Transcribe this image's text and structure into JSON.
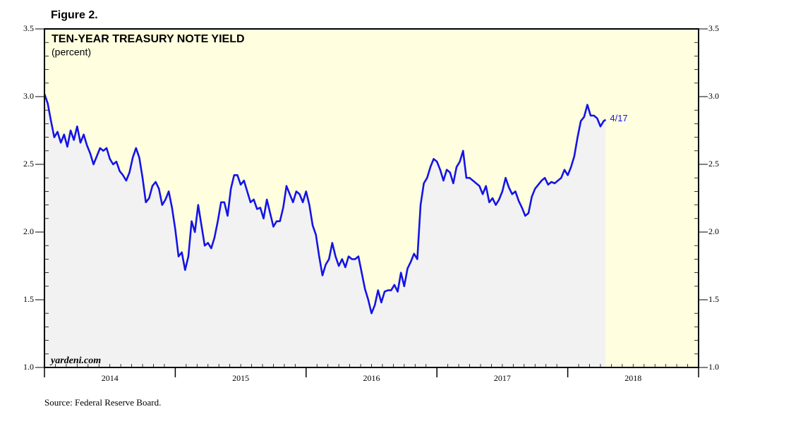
{
  "chart_data": {
    "type": "line",
    "figure_label": "Figure 2.",
    "title": "TEN-YEAR TREASURY NOTE YIELD",
    "subtitle": "(percent)",
    "watermark": "yardeni.com",
    "source": "Source: Federal Reserve Board.",
    "end_annotation": "4/17",
    "color": "#1414e6",
    "area_color": "#f2f2f2",
    "background_color": "#ffffe0",
    "xlim": [
      2014,
      2019
    ],
    "xticks": [
      {
        "value": 2014.5,
        "label": "2014"
      },
      {
        "value": 2015.5,
        "label": "2015"
      },
      {
        "value": 2016.5,
        "label": "2016"
      },
      {
        "value": 2017.5,
        "label": "2017"
      },
      {
        "value": 2018.5,
        "label": "2018"
      }
    ],
    "year_boundaries": [
      2015,
      2016,
      2017,
      2018
    ],
    "ylim": [
      1.0,
      3.5
    ],
    "yticks": [
      {
        "value": 1.0,
        "label": "1.0"
      },
      {
        "value": 1.5,
        "label": "1.5"
      },
      {
        "value": 2.0,
        "label": "2.0"
      },
      {
        "value": 2.5,
        "label": "2.5"
      },
      {
        "value": 3.0,
        "label": "3.0"
      },
      {
        "value": 3.5,
        "label": "3.5"
      }
    ],
    "x": [
      2014,
      2014.025,
      2014.05,
      2014.075,
      2014.1,
      2014.125,
      2014.15,
      2014.175,
      2014.2,
      2014.225,
      2014.25,
      2014.275,
      2014.3,
      2014.325,
      2014.35,
      2014.375,
      2014.4,
      2014.425,
      2014.45,
      2014.475,
      2014.5,
      2014.525,
      2014.55,
      2014.575,
      2014.6,
      2014.625,
      2014.65,
      2014.675,
      2014.7,
      2014.725,
      2014.75,
      2014.775,
      2014.8,
      2014.825,
      2014.85,
      2014.875,
      2014.9,
      2014.925,
      2014.95,
      2014.975,
      2015,
      2015.025,
      2015.05,
      2015.075,
      2015.1,
      2015.125,
      2015.15,
      2015.175,
      2015.2,
      2015.225,
      2015.25,
      2015.275,
      2015.3,
      2015.325,
      2015.35,
      2015.375,
      2015.4,
      2015.425,
      2015.45,
      2015.475,
      2015.5,
      2015.525,
      2015.55,
      2015.575,
      2015.6,
      2015.625,
      2015.65,
      2015.675,
      2015.7,
      2015.725,
      2015.75,
      2015.775,
      2015.8,
      2015.825,
      2015.85,
      2015.875,
      2015.9,
      2015.925,
      2015.95,
      2015.975,
      2016,
      2016.025,
      2016.05,
      2016.075,
      2016.1,
      2016.125,
      2016.15,
      2016.175,
      2016.2,
      2016.225,
      2016.25,
      2016.275,
      2016.3,
      2016.325,
      2016.35,
      2016.375,
      2016.4,
      2016.425,
      2016.45,
      2016.475,
      2016.5,
      2016.525,
      2016.55,
      2016.575,
      2016.6,
      2016.625,
      2016.65,
      2016.675,
      2016.7,
      2016.725,
      2016.75,
      2016.775,
      2016.8,
      2016.825,
      2016.85,
      2016.875,
      2016.9,
      2016.925,
      2016.95,
      2016.975,
      2017,
      2017.025,
      2017.05,
      2017.075,
      2017.1,
      2017.125,
      2017.15,
      2017.175,
      2017.2,
      2017.225,
      2017.25,
      2017.275,
      2017.3,
      2017.325,
      2017.35,
      2017.375,
      2017.4,
      2017.425,
      2017.45,
      2017.475,
      2017.5,
      2017.525,
      2017.55,
      2017.575,
      2017.6,
      2017.625,
      2017.65,
      2017.675,
      2017.7,
      2017.725,
      2017.75,
      2017.775,
      2017.8,
      2017.825,
      2017.85,
      2017.875,
      2017.9,
      2017.925,
      2017.95,
      2017.975,
      2018,
      2018.025,
      2018.05,
      2018.075,
      2018.1,
      2018.125,
      2018.15,
      2018.175,
      2018.2,
      2018.225,
      2018.25,
      2018.275,
      2018.29
    ],
    "values": [
      3.02,
      2.95,
      2.82,
      2.7,
      2.74,
      2.66,
      2.72,
      2.63,
      2.75,
      2.68,
      2.78,
      2.66,
      2.72,
      2.64,
      2.58,
      2.5,
      2.56,
      2.62,
      2.6,
      2.62,
      2.54,
      2.5,
      2.52,
      2.45,
      2.42,
      2.38,
      2.44,
      2.55,
      2.62,
      2.55,
      2.4,
      2.22,
      2.25,
      2.34,
      2.37,
      2.32,
      2.2,
      2.24,
      2.3,
      2.18,
      2.02,
      1.82,
      1.85,
      1.72,
      1.82,
      2.08,
      2.0,
      2.2,
      2.05,
      1.9,
      1.92,
      1.88,
      1.96,
      2.08,
      2.22,
      2.22,
      2.12,
      2.32,
      2.42,
      2.42,
      2.35,
      2.38,
      2.3,
      2.22,
      2.24,
      2.17,
      2.18,
      2.1,
      2.24,
      2.14,
      2.04,
      2.08,
      2.08,
      2.18,
      2.34,
      2.28,
      2.22,
      2.3,
      2.28,
      2.22,
      2.3,
      2.2,
      2.05,
      1.98,
      1.82,
      1.68,
      1.76,
      1.8,
      1.92,
      1.82,
      1.75,
      1.8,
      1.74,
      1.82,
      1.8,
      1.8,
      1.82,
      1.7,
      1.58,
      1.5,
      1.4,
      1.46,
      1.57,
      1.48,
      1.56,
      1.57,
      1.57,
      1.61,
      1.56,
      1.7,
      1.6,
      1.73,
      1.78,
      1.84,
      1.8,
      2.2,
      2.36,
      2.4,
      2.48,
      2.54,
      2.52,
      2.46,
      2.38,
      2.46,
      2.44,
      2.36,
      2.48,
      2.52,
      2.6,
      2.4,
      2.4,
      2.38,
      2.36,
      2.34,
      2.28,
      2.34,
      2.22,
      2.25,
      2.2,
      2.24,
      2.3,
      2.4,
      2.33,
      2.28,
      2.3,
      2.23,
      2.18,
      2.12,
      2.14,
      2.26,
      2.32,
      2.35,
      2.38,
      2.4,
      2.35,
      2.37,
      2.36,
      2.38,
      2.4,
      2.46,
      2.42,
      2.48,
      2.56,
      2.7,
      2.82,
      2.85,
      2.94,
      2.86,
      2.86,
      2.84,
      2.78,
      2.82,
      2.83
    ]
  }
}
